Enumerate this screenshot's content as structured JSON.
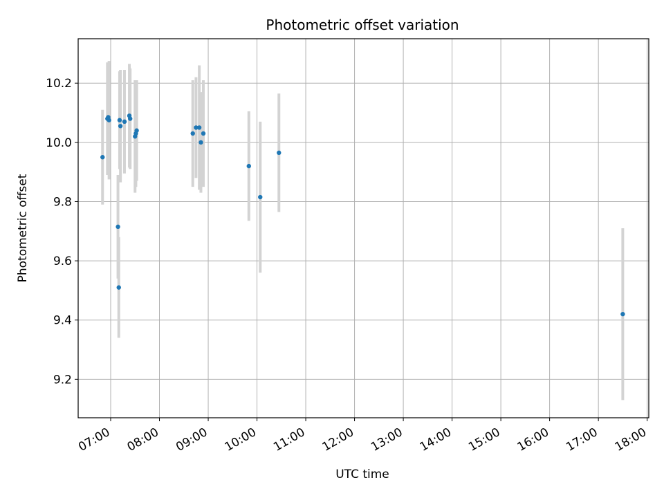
{
  "chart_data": {
    "type": "scatter",
    "title": "Photometric offset variation",
    "xlabel": "UTC time",
    "ylabel": "Photometric offset",
    "x_tick_labels": [
      "07:00",
      "08:00",
      "09:00",
      "10:00",
      "11:00",
      "12:00",
      "13:00",
      "14:00",
      "15:00",
      "16:00",
      "17:00",
      "18:00"
    ],
    "y_tick_labels": [
      "9.2",
      "9.4",
      "9.6",
      "9.8",
      "10.0",
      "10.2"
    ],
    "xlim": [
      "06:20",
      "18:02"
    ],
    "ylim": [
      9.07,
      10.35
    ],
    "grid": true,
    "colors": {
      "point": "#1f77b4",
      "error_bar": "#d3d3d3",
      "grid": "#b0b0b0"
    },
    "points": [
      {
        "x": "06:50",
        "y": 9.95,
        "err": 0.16
      },
      {
        "x": "06:56",
        "y": 10.08,
        "err": 0.19
      },
      {
        "x": "06:57",
        "y": 10.085,
        "err": 0.18
      },
      {
        "x": "06:58",
        "y": 10.075,
        "err": 0.2
      },
      {
        "x": "07:09",
        "y": 9.715,
        "err": 0.175
      },
      {
        "x": "07:10",
        "y": 9.51,
        "err": 0.17
      },
      {
        "x": "07:11",
        "y": 10.075,
        "err": 0.165
      },
      {
        "x": "07:12",
        "y": 10.055,
        "err": 0.19
      },
      {
        "x": "07:17",
        "y": 10.07,
        "err": 0.175
      },
      {
        "x": "07:23",
        "y": 10.09,
        "err": 0.175
      },
      {
        "x": "07:24",
        "y": 10.08,
        "err": 0.17
      },
      {
        "x": "07:30",
        "y": 10.02,
        "err": 0.19
      },
      {
        "x": "07:31",
        "y": 10.03,
        "err": 0.18
      },
      {
        "x": "07:32",
        "y": 10.04,
        "err": 0.17
      },
      {
        "x": "08:41",
        "y": 10.03,
        "err": 0.18
      },
      {
        "x": "08:45",
        "y": 10.05,
        "err": 0.17
      },
      {
        "x": "08:49",
        "y": 10.05,
        "err": 0.21
      },
      {
        "x": "08:51",
        "y": 10.0,
        "err": 0.17
      },
      {
        "x": "08:54",
        "y": 10.03,
        "err": 0.18
      },
      {
        "x": "09:50",
        "y": 9.92,
        "err": 0.185
      },
      {
        "x": "10:04",
        "y": 9.815,
        "err": 0.255
      },
      {
        "x": "10:27",
        "y": 9.965,
        "err": 0.2
      },
      {
        "x": "17:30",
        "y": 9.42,
        "err": 0.29
      }
    ]
  }
}
